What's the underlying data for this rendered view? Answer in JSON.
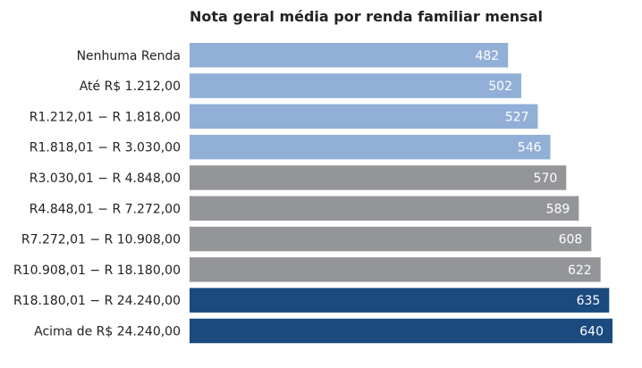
{
  "chart_data": {
    "type": "bar",
    "orientation": "horizontal",
    "title": "Nota geral média por renda familiar mensal",
    "xlabel": "",
    "ylabel": "",
    "grid": false,
    "xlim": [
      0,
      640
    ],
    "categories": [
      "Nenhuma Renda",
      "Até R$ 1.212,00",
      "R1.212,01 − R 1.818,00",
      "R1.818,01 − R 3.030,00",
      "R3.030,01 − R 4.848,00",
      "R4.848,01 − R 7.272,00",
      "R7.272,01 − R 10.908,00",
      "R10.908,01 − R 18.180,00",
      "R18.180,01 − R 24.240,00",
      "Acima de R$ 24.240,00"
    ],
    "values": [
      482,
      502,
      527,
      546,
      570,
      589,
      608,
      622,
      635,
      640
    ],
    "bar_colors": [
      "#92afd7",
      "#92afd7",
      "#92afd7",
      "#92afd7",
      "#939598",
      "#939598",
      "#939598",
      "#939598",
      "#1a4a7e",
      "#1a4a7e"
    ]
  }
}
